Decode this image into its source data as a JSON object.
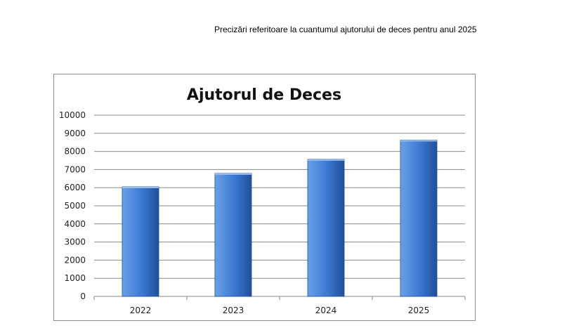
{
  "page": {
    "heading": "Precizări referitoare la cuantumul ajutorului de deces pentru anul 2025"
  },
  "colors": {
    "bar_top": "#6aa0e8",
    "bar_mid": "#3a78d0",
    "bar_bottom": "#1f4f9a",
    "grid": "#8a8a8a",
    "frame": "#8c8c8c"
  },
  "chart_data": {
    "type": "bar",
    "title": "Ajutorul de Deces",
    "xlabel": "",
    "ylabel": "",
    "categories": [
      "2022",
      "2023",
      "2024",
      "2025"
    ],
    "values": [
      6050,
      6790,
      7567,
      8630
    ],
    "ylim": [
      0,
      10000
    ],
    "yticks": [
      0,
      1000,
      2000,
      3000,
      4000,
      5000,
      6000,
      7000,
      8000,
      9000,
      10000
    ],
    "grid": true,
    "legend": "none"
  }
}
